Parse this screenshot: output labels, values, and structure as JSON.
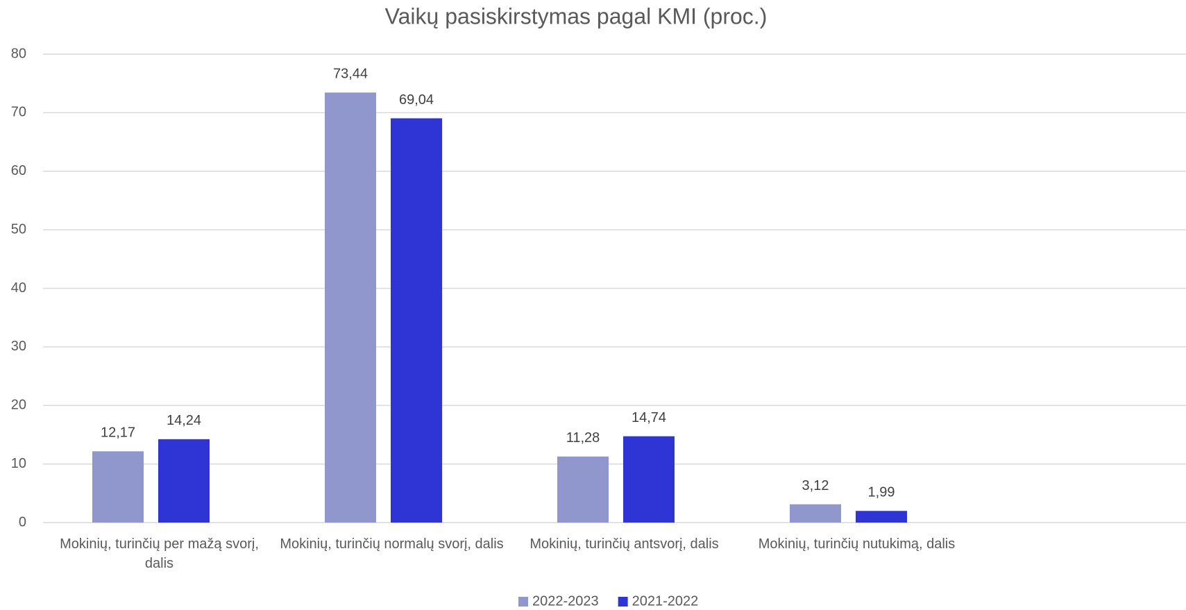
{
  "chart_data": {
    "type": "bar",
    "title": "Vaikų pasiskirstymas pagal KMI (proc.)",
    "categories": [
      "Mokinių, turinčių per mažą svorį, dalis",
      "Mokinių, turinčių normalų svorį, dalis",
      "Mokinių, turinčių antsvorį, dalis",
      "Mokinių, turinčių nutukimą, dalis",
      null
    ],
    "series": [
      {
        "name": "2022-2023",
        "color": "#8f97cc",
        "values": [
          12.17,
          73.44,
          11.28,
          3.12,
          null
        ],
        "value_labels": [
          "12,17",
          "73,44",
          "11,28",
          "3,12",
          null
        ]
      },
      {
        "name": "2021-2022",
        "color": "#2f35d4",
        "values": [
          14.24,
          69.04,
          14.74,
          1.99,
          null
        ],
        "value_labels": [
          "14,24",
          "69,04",
          "14,74",
          "1,99",
          null
        ]
      }
    ],
    "ylim": [
      0,
      80
    ],
    "yticks": [
      0,
      10,
      20,
      30,
      40,
      50,
      60,
      70,
      80
    ],
    "grid": true,
    "legend": "bottom"
  }
}
